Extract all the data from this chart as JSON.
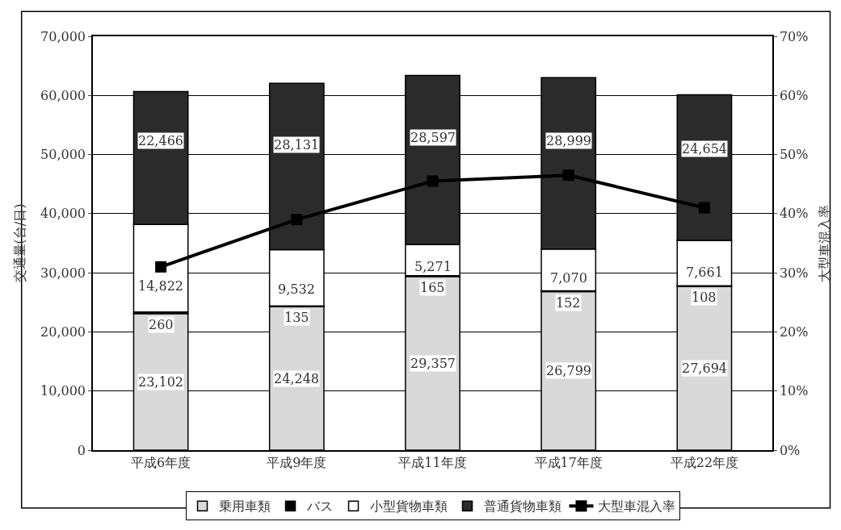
{
  "chart_data": {
    "type": "bar",
    "stacked": true,
    "ylabel": "交通量(台/日)",
    "y2label": "大型車混入率",
    "categories": [
      "平成6年度",
      "平成9年度",
      "平成11年度",
      "平成17年度",
      "平成22年度"
    ],
    "series": [
      {
        "name": "乗用車類",
        "color": "#d9d9d9",
        "values": [
          23102,
          24248,
          29357,
          26799,
          27694
        ],
        "value_labels": [
          "23,102",
          "24,248",
          "29,357",
          "26,799",
          "27,694"
        ]
      },
      {
        "name": "バス",
        "color": "#000000",
        "values": [
          260,
          135,
          165,
          152,
          108
        ],
        "value_labels": [
          "260",
          "135",
          "165",
          "152",
          "108"
        ]
      },
      {
        "name": "小型貨物車類",
        "color": "#ffffff",
        "values": [
          14822,
          9532,
          5271,
          7070,
          7661
        ],
        "value_labels": [
          "14,822",
          "9,532",
          "5,271",
          "7,070",
          "7,661"
        ]
      },
      {
        "name": "普通貨物車類",
        "color": "#2b2b2b",
        "values": [
          22466,
          28131,
          28597,
          28999,
          24654
        ],
        "value_labels": [
          "22,466",
          "28,131",
          "28,597",
          "28,999",
          "24,654"
        ]
      },
      {
        "name": "大型車混入率",
        "type": "line",
        "axis": "y2",
        "color": "#000000",
        "marker": "square",
        "values": [
          31,
          39,
          45.5,
          46.5,
          41
        ]
      }
    ],
    "ylim": [
      0,
      70000
    ],
    "yticks": [
      0,
      {
        "value": 10000,
        "label": "10,000"
      },
      {
        "value": 20000,
        "label": "20,000"
      },
      {
        "value": 30000,
        "label": "30,000"
      },
      {
        "value": 40000,
        "label": "40,000"
      },
      {
        "value": 50000,
        "label": "50,000"
      },
      {
        "value": 60000,
        "label": "60,000"
      },
      {
        "value": 70000,
        "label": "70,000"
      }
    ],
    "y2lim": [
      0,
      70
    ],
    "y2ticks": [
      {
        "value": 0,
        "label": "0%"
      },
      {
        "value": 10,
        "label": "10%"
      },
      {
        "value": 20,
        "label": "20%"
      },
      {
        "value": 30,
        "label": "30%"
      },
      {
        "value": 40,
        "label": "40%"
      },
      {
        "value": 50,
        "label": "50%"
      },
      {
        "value": 60,
        "label": "60%"
      },
      {
        "value": 70,
        "label": "70%"
      }
    ],
    "grid": "y",
    "legend": "bottom"
  }
}
